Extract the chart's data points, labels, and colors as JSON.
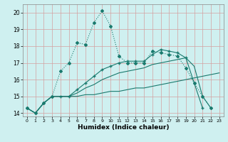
{
  "xlabel": "Humidex (Indice chaleur)",
  "bg_color": "#cff0f0",
  "grid_color_major": "#e8b0b0",
  "grid_color_minor": "#d8d8d8",
  "line_color": "#1a7a6e",
  "xlim": [
    -0.5,
    23.5
  ],
  "ylim": [
    13.8,
    20.5
  ],
  "yticks": [
    14,
    15,
    16,
    17,
    18,
    19,
    20
  ],
  "xticks": [
    0,
    1,
    2,
    3,
    4,
    5,
    6,
    7,
    8,
    9,
    10,
    11,
    12,
    13,
    14,
    15,
    16,
    17,
    18,
    19,
    20,
    21,
    22,
    23
  ],
  "s1_x": [
    0,
    1,
    2,
    3,
    4,
    5,
    6,
    7,
    8,
    9,
    10,
    11,
    12,
    13,
    14,
    15,
    16,
    17,
    18,
    19,
    20,
    21,
    22
  ],
  "s1_y": [
    14.3,
    14.0,
    14.6,
    15.0,
    16.5,
    17.0,
    18.2,
    18.1,
    19.4,
    20.1,
    19.2,
    17.4,
    17.0,
    17.0,
    17.0,
    17.7,
    17.6,
    17.5,
    17.4,
    16.7,
    15.8,
    15.0,
    14.3
  ],
  "s2_x": [
    0,
    1,
    2,
    3,
    4,
    5,
    6,
    7,
    8,
    9,
    10,
    11,
    12,
    13,
    14,
    15,
    16,
    17,
    18,
    19,
    20,
    21,
    22,
    23
  ],
  "s2_y": [
    14.3,
    14.0,
    14.6,
    15.0,
    15.0,
    15.0,
    15.0,
    15.1,
    15.1,
    15.2,
    15.3,
    15.3,
    15.4,
    15.5,
    15.5,
    15.6,
    15.7,
    15.8,
    15.9,
    16.0,
    16.1,
    16.2,
    16.3,
    16.4
  ],
  "s3_x": [
    0,
    1,
    2,
    3,
    4,
    5,
    6,
    7,
    8,
    9,
    10,
    11,
    12,
    13,
    14,
    15,
    16,
    17,
    18,
    19,
    20,
    21,
    22
  ],
  "s3_y": [
    14.3,
    14.0,
    14.6,
    15.0,
    15.0,
    15.0,
    15.2,
    15.5,
    15.7,
    16.0,
    16.2,
    16.4,
    16.5,
    16.6,
    16.7,
    16.9,
    17.0,
    17.1,
    17.2,
    17.3,
    16.8,
    15.0,
    14.3
  ],
  "s4_x": [
    0,
    1,
    2,
    3,
    4,
    5,
    6,
    7,
    8,
    9,
    10,
    11,
    12,
    13,
    14,
    15,
    16,
    17,
    18,
    19,
    20,
    21
  ],
  "s4_y": [
    14.3,
    14.0,
    14.6,
    15.0,
    15.0,
    15.0,
    15.4,
    15.8,
    16.2,
    16.6,
    16.8,
    17.0,
    17.1,
    17.1,
    17.1,
    17.5,
    17.8,
    17.7,
    17.6,
    17.3,
    15.8,
    14.3
  ]
}
